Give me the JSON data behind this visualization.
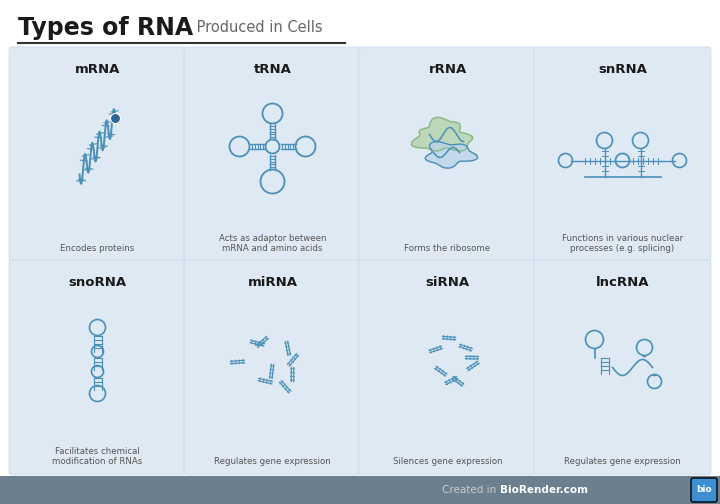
{
  "title_main": "Types of RNA",
  "title_sub": " Produced in Cells",
  "bg_color": "#ffffff",
  "card_color": "#dfe9f3",
  "line_color": "#4a90b8",
  "green_fill": "#b8d4b0",
  "green_stroke": "#8ab88a",
  "blue_fill": "#b8d4e8",
  "footer_bg": "#6b7f8e",
  "rna_types": [
    "mRNA",
    "tRNA",
    "rRNA",
    "snRNA",
    "snoRNA",
    "miRNA",
    "siRNA",
    "lncRNA"
  ],
  "descriptions": [
    "Encodes proteins",
    "Acts as adaptor between\nmRNA and amino acids",
    "Forms the ribosome",
    "Functions in various nuclear\nprocesses (e.g. splicing)",
    "Facilitates chemical\nmodification of RNAs",
    "Regulates gene expression",
    "Silences gene expression",
    "Regulates gene expression"
  ]
}
